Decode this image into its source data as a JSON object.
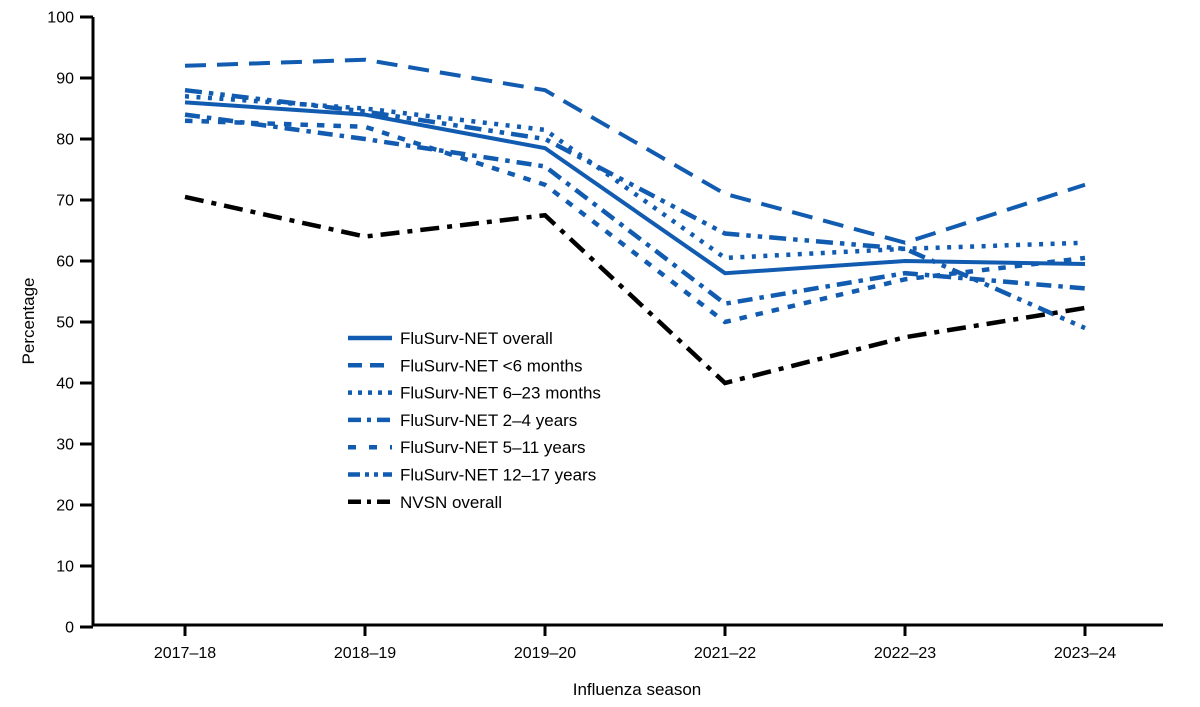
{
  "figure": {
    "y_axis_label": "Percentage",
    "x_axis_label": "Influenza season"
  },
  "chart_data": {
    "type": "line",
    "title": "",
    "xlabel": "Influenza season",
    "ylabel": "Percentage",
    "ylim": [
      0,
      100
    ],
    "y_ticks": [
      0,
      10,
      20,
      30,
      40,
      50,
      60,
      70,
      80,
      90,
      100
    ],
    "grid": false,
    "legend_position": "inside-left-middle",
    "categories": [
      "2017–18",
      "2018–19",
      "2019–20",
      "2021–22",
      "2022–23",
      "2023–24"
    ],
    "series": [
      {
        "name": "FluSurv-NET overall",
        "dash": "solid",
        "color": "#115BB0",
        "values": [
          86,
          84,
          78.5,
          58,
          60,
          59.5
        ]
      },
      {
        "name": "FluSurv-NET <6 months",
        "dash": "long-dash",
        "color": "#115BB0",
        "values": [
          92,
          93,
          88,
          71,
          63,
          72.5
        ]
      },
      {
        "name": "FluSurv-NET 6–23 months",
        "dash": "dotted",
        "color": "#115BB0",
        "values": [
          87,
          85,
          81.5,
          60.5,
          62,
          63
        ]
      },
      {
        "name": "FluSurv-NET 2–4 years",
        "dash": "dash-dot",
        "color": "#115BB0",
        "values": [
          84,
          80,
          75.5,
          53,
          58,
          55.5
        ]
      },
      {
        "name": "FluSurv-NET 5–11 years",
        "dash": "short-dash",
        "color": "#115BB0",
        "values": [
          83,
          82,
          72.5,
          50,
          57,
          60.5
        ]
      },
      {
        "name": "FluSurv-NET 12–17 years",
        "dash": "dash-dot-dot",
        "color": "#115BB0",
        "values": [
          88,
          84.5,
          80,
          64.5,
          62,
          49
        ]
      },
      {
        "name": "NVSN overall",
        "dash": "long-dash-dot",
        "color": "#000000",
        "values": [
          70.5,
          64,
          67.5,
          40,
          47.5,
          52.3
        ]
      }
    ]
  }
}
